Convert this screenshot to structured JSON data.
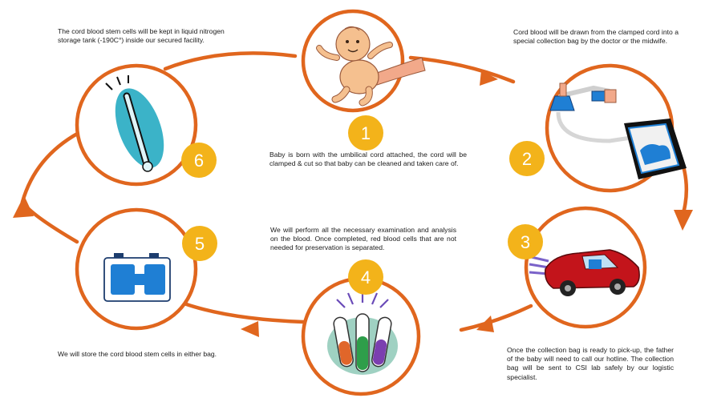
{
  "colors": {
    "ring": "#e0661e",
    "badge": "#f3b31a",
    "blue": "#1f7fd4",
    "skin": "#f5c08f",
    "car": "#c3141b",
    "thermo": "#3bb3c8"
  },
  "steps": [
    {
      "number": "1",
      "icon": "baby-icon",
      "text": "Baby is born with the umbilical cord attached, the cord will be clamped & cut so that baby can be cleaned and taken care of."
    },
    {
      "number": "2",
      "icon": "collection-bag-icon",
      "text": "Cord blood will be drawn from the clamped cord into a special collection bag by the doctor or the midwife."
    },
    {
      "number": "3",
      "icon": "car-icon",
      "text": "Once the collection bag is ready to pick-up, the father of the baby will need to call our hotline. The collection bag will be sent to CSI lab safely by our logistic specialist."
    },
    {
      "number": "4",
      "icon": "test-tubes-icon",
      "text": "We will perform all the necessary examination and analysis on the blood. Once completed, red blood cells that are not needed for preservation is separated."
    },
    {
      "number": "5",
      "icon": "storage-bag-icon",
      "text": "We will store the cord blood stem cells in either bag."
    },
    {
      "number": "6",
      "icon": "thermometer-icon",
      "text": "The cord blood stem cells will be kept in liquid nitrogen storage tank (-190C°) inside our secured facility."
    }
  ]
}
